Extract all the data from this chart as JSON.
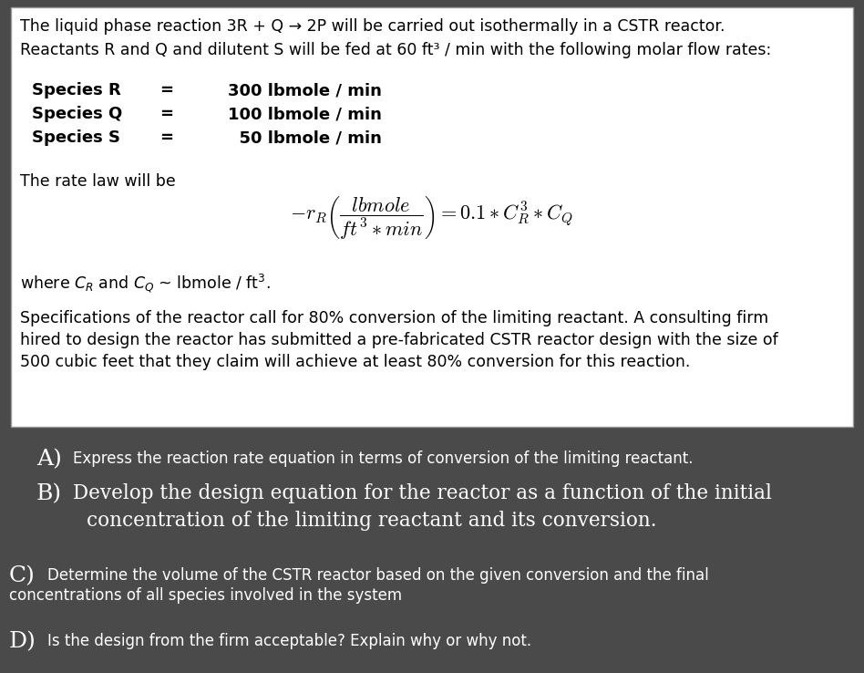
{
  "bg_color": "#4a4a4a",
  "white_box_bg": "#ffffff",
  "line1": "The liquid phase reaction 3R + Q → 2P will be carried out isothermally in a CSTR reactor.",
  "line2": "Reactants R and Q and dilutent S will be fed at 60 ft³ / min with the following molar flow rates:",
  "species_r": "Species R",
  "species_q": "Species Q",
  "species_s": "Species S",
  "val_r": "300 lbmole / min",
  "val_q": "100 lbmole / min",
  "val_s": "  50 lbmole / min",
  "rate_law_label": "The rate law will be",
  "specs_line1": "Specifications of the reactor call for 80% conversion of the limiting reactant. A consulting firm",
  "specs_line2": "hired to design the reactor has submitted a pre-fabricated CSTR reactor design with the size of",
  "specs_line3": "500 cubic feet that they claim will achieve at least 80% conversion for this reaction.",
  "part_A_text": "Express the reaction rate equation in terms of conversion of the limiting reactant.",
  "part_B_text1": "Develop the design equation for the reactor as a function of the initial",
  "part_B_text2": "concentration of the limiting reactant and its conversion.",
  "part_C_text1": "Determine the volume of the CSTR reactor based on the given conversion and the final",
  "part_C_text2": "concentrations of all species involved in the system",
  "part_D_text": "Is the design from the firm acceptable? Explain why or why not."
}
